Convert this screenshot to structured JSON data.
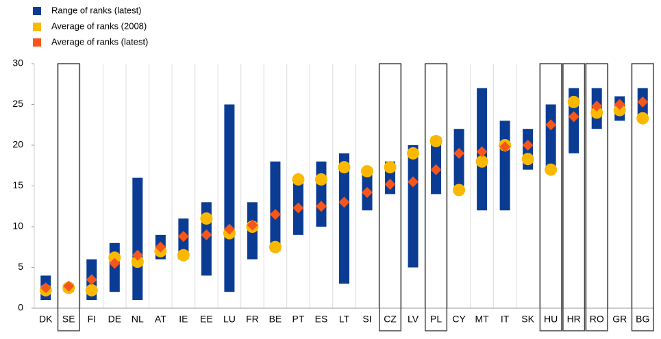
{
  "chart_data": {
    "type": "range-markers",
    "categories": [
      "DK",
      "SE",
      "FI",
      "DE",
      "NL",
      "AT",
      "IE",
      "EE",
      "LU",
      "FR",
      "BE",
      "PT",
      "ES",
      "LT",
      "SI",
      "CZ",
      "LV",
      "PL",
      "CY",
      "MT",
      "IT",
      "SK",
      "HU",
      "HR",
      "RO",
      "GR",
      "BG"
    ],
    "highlight": [
      false,
      true,
      false,
      false,
      false,
      false,
      false,
      false,
      false,
      false,
      false,
      false,
      false,
      false,
      false,
      true,
      false,
      true,
      false,
      false,
      false,
      false,
      true,
      true,
      true,
      false,
      true
    ],
    "series": [
      {
        "name": "Range of ranks (latest)",
        "color": "#0b3c94",
        "low": [
          1,
          2,
          1,
          2,
          1,
          6,
          6,
          4,
          2,
          6,
          7,
          9,
          10,
          3,
          12,
          14,
          5,
          14,
          15,
          12,
          12,
          17,
          17,
          19,
          22,
          23,
          23
        ],
        "high": [
          4,
          3,
          6,
          8,
          16,
          9,
          11,
          13,
          25,
          13,
          18,
          16,
          18,
          19,
          17,
          18,
          20,
          21,
          22,
          27,
          23,
          22,
          25,
          27,
          27,
          26,
          27
        ]
      },
      {
        "name": "Average of ranks (2008)",
        "color": "#fbb800",
        "values": [
          2.2,
          2.5,
          2.2,
          6.2,
          5.7,
          7,
          6.5,
          11,
          9.2,
          10,
          7.5,
          15.8,
          15.8,
          17.3,
          16.8,
          17.3,
          19,
          20.5,
          14.5,
          18,
          20,
          18.3,
          17,
          25.3,
          24,
          24.3,
          23.3
        ]
      },
      {
        "name": "Average of ranks (latest)",
        "color": "#f5561b",
        "values": [
          2.5,
          2.7,
          3.5,
          5.5,
          6.5,
          7.5,
          8.8,
          9,
          9.7,
          10.2,
          11.5,
          12.3,
          12.5,
          13,
          14.2,
          15.2,
          15.5,
          17,
          19,
          19.2,
          19.8,
          20,
          22.5,
          23.5,
          24.8,
          25,
          25.3
        ]
      }
    ],
    "ylim": [
      0,
      30
    ],
    "yticks": [
      0,
      5,
      10,
      15,
      20,
      25,
      30
    ],
    "grid": "vertical"
  }
}
